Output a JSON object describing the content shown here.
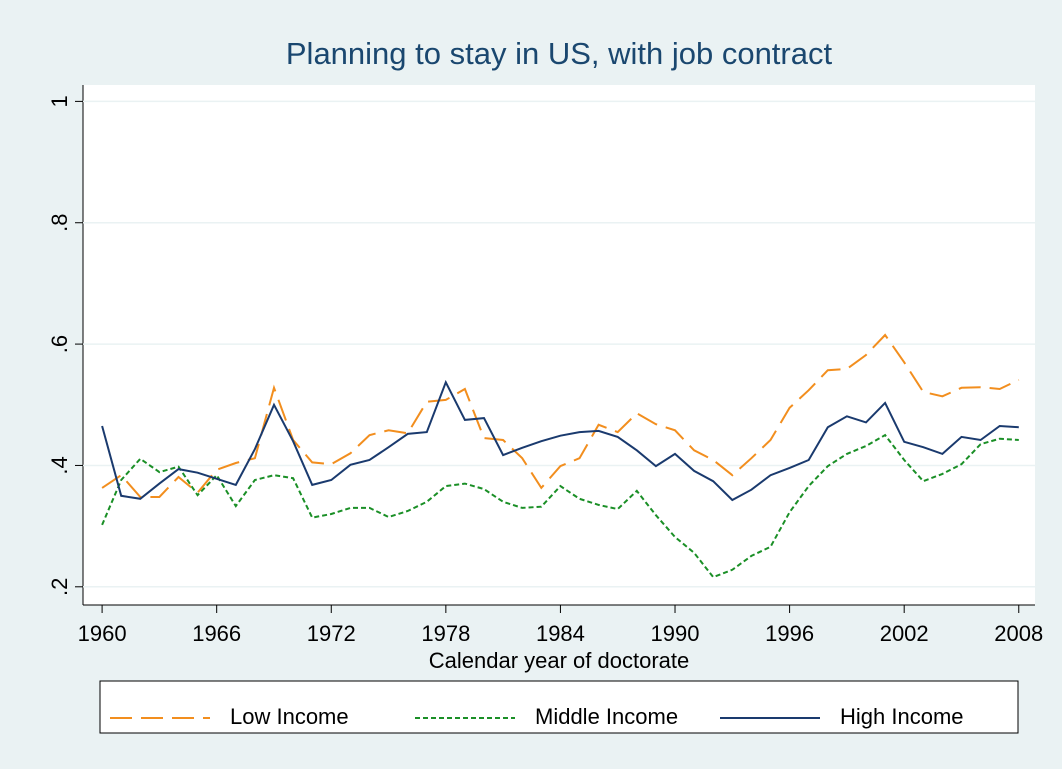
{
  "chart_data": {
    "type": "line",
    "title": "Planning to stay in US, with job contract",
    "x_label": "Calendar year of doctorate",
    "x": [
      1960,
      1961,
      1962,
      1963,
      1964,
      1965,
      1966,
      1967,
      1968,
      1969,
      1970,
      1971,
      1972,
      1973,
      1974,
      1975,
      1976,
      1977,
      1978,
      1979,
      1980,
      1981,
      1982,
      1983,
      1984,
      1985,
      1986,
      1987,
      1988,
      1989,
      1990,
      1991,
      1992,
      1993,
      1994,
      1995,
      1996,
      1997,
      1998,
      1999,
      2000,
      2001,
      2002,
      2003,
      2004,
      2005,
      2006,
      2007,
      2008
    ],
    "series": [
      {
        "name": "Low Income",
        "color": "#f28e1e",
        "dash": "long",
        "values": [
          0.363,
          0.384,
          0.348,
          0.348,
          0.381,
          0.355,
          0.393,
          0.404,
          0.412,
          0.528,
          0.442,
          0.405,
          0.402,
          0.42,
          0.45,
          0.458,
          0.453,
          0.505,
          0.508,
          0.526,
          0.445,
          0.442,
          0.412,
          0.363,
          0.399,
          0.412,
          0.467,
          0.455,
          0.486,
          0.468,
          0.458,
          0.425,
          0.409,
          0.384,
          0.412,
          0.442,
          0.495,
          0.524,
          0.557,
          0.559,
          0.582,
          0.615,
          0.57,
          0.521,
          0.514,
          0.528,
          0.529,
          0.526,
          0.541
        ]
      },
      {
        "name": "Middle Income",
        "color": "#1a8f26",
        "dash": "short",
        "values": [
          0.302,
          0.376,
          0.411,
          0.389,
          0.398,
          0.351,
          0.384,
          0.333,
          0.376,
          0.384,
          0.379,
          0.314,
          0.32,
          0.33,
          0.33,
          0.315,
          0.325,
          0.34,
          0.366,
          0.37,
          0.361,
          0.34,
          0.33,
          0.332,
          0.366,
          0.345,
          0.335,
          0.328,
          0.358,
          0.318,
          0.282,
          0.256,
          0.216,
          0.228,
          0.251,
          0.266,
          0.323,
          0.366,
          0.399,
          0.419,
          0.432,
          0.45,
          0.409,
          0.374,
          0.386,
          0.402,
          0.435,
          0.444,
          0.442
        ]
      },
      {
        "name": "High Income",
        "color": "#1a3a6e",
        "dash": "solid",
        "values": [
          0.465,
          0.35,
          0.345,
          0.37,
          0.394,
          0.388,
          0.378,
          0.368,
          0.427,
          0.5,
          0.44,
          0.368,
          0.376,
          0.401,
          0.409,
          0.43,
          0.452,
          0.455,
          0.537,
          0.475,
          0.478,
          0.417,
          0.429,
          0.44,
          0.449,
          0.455,
          0.457,
          0.447,
          0.425,
          0.399,
          0.419,
          0.391,
          0.374,
          0.343,
          0.36,
          0.384,
          0.396,
          0.409,
          0.463,
          0.481,
          0.471,
          0.503,
          0.439,
          0.43,
          0.419,
          0.447,
          0.442,
          0.465,
          0.463
        ]
      }
    ],
    "xlim": [
      1959,
      2008.85
    ],
    "xticks": [
      1960,
      1966,
      1972,
      1978,
      1984,
      1990,
      1996,
      2002,
      2008
    ],
    "ylim": [
      0.17,
      1.027
    ],
    "yticks": [
      {
        "value": 0.2,
        "label": ".2"
      },
      {
        "value": 0.4,
        "label": ".4"
      },
      {
        "value": 0.6,
        "label": ".6"
      },
      {
        "value": 0.8,
        "label": ".8"
      },
      1
    ],
    "grid": true,
    "legend": "bottom"
  }
}
